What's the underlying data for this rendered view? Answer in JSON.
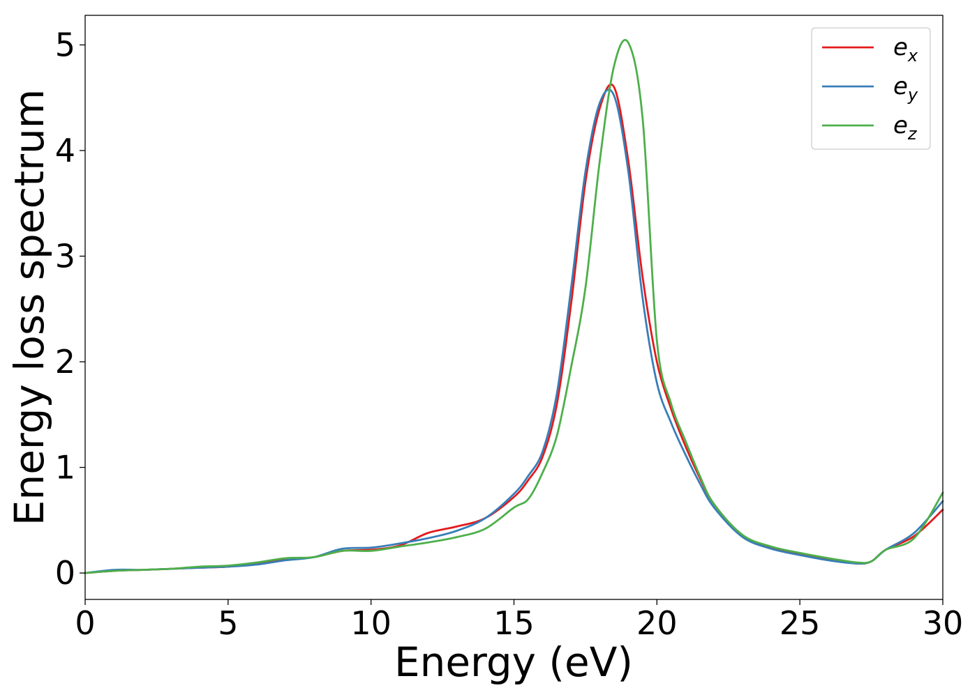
{
  "chart_data": {
    "type": "line",
    "xlabel": "Energy (eV)",
    "ylabel": "Energy loss spectrum",
    "xlim": [
      0,
      30
    ],
    "ylim": [
      -0.25,
      5.28
    ],
    "xticks": [
      0,
      5,
      10,
      15,
      20,
      25,
      30
    ],
    "xtick_labels": [
      "0",
      "5",
      "10",
      "15",
      "20",
      "25",
      "30"
    ],
    "yticks": [
      0,
      1,
      2,
      3,
      4,
      5
    ],
    "ytick_labels": [
      "0",
      "1",
      "2",
      "3",
      "4",
      "5"
    ],
    "grid": false,
    "legend_position": "top-right",
    "x": [
      0,
      1,
      2,
      3,
      4,
      5,
      6,
      7,
      8,
      9,
      10,
      11,
      12,
      13,
      14,
      15,
      15.5,
      16,
      16.5,
      17,
      17.5,
      18,
      18.5,
      19,
      19.5,
      20,
      20.5,
      21,
      21.5,
      22,
      23,
      24,
      25,
      26,
      27,
      27.5,
      28,
      29,
      30
    ],
    "series": [
      {
        "name": "e",
        "subscript": "x",
        "color": "#e41a1c",
        "values": [
          0.0,
          0.02,
          0.03,
          0.04,
          0.05,
          0.06,
          0.09,
          0.13,
          0.15,
          0.21,
          0.22,
          0.26,
          0.38,
          0.44,
          0.52,
          0.72,
          0.88,
          1.1,
          1.6,
          2.55,
          3.7,
          4.4,
          4.6,
          3.9,
          2.8,
          2.0,
          1.55,
          1.2,
          0.9,
          0.65,
          0.35,
          0.24,
          0.18,
          0.13,
          0.09,
          0.11,
          0.22,
          0.35,
          0.6
        ]
      },
      {
        "name": "e",
        "subscript": "y",
        "color": "#377eb8",
        "values": [
          0.0,
          0.03,
          0.03,
          0.04,
          0.05,
          0.06,
          0.08,
          0.12,
          0.15,
          0.23,
          0.24,
          0.28,
          0.33,
          0.4,
          0.52,
          0.75,
          0.92,
          1.15,
          1.7,
          2.7,
          3.8,
          4.45,
          4.52,
          3.8,
          2.6,
          1.8,
          1.42,
          1.12,
          0.85,
          0.62,
          0.34,
          0.23,
          0.17,
          0.12,
          0.09,
          0.11,
          0.22,
          0.38,
          0.68
        ]
      },
      {
        "name": "e",
        "subscript": "z",
        "color": "#4daf4a",
        "values": [
          0.0,
          0.02,
          0.03,
          0.04,
          0.06,
          0.07,
          0.1,
          0.14,
          0.15,
          0.21,
          0.21,
          0.25,
          0.29,
          0.34,
          0.42,
          0.62,
          0.7,
          0.95,
          1.3,
          1.95,
          2.7,
          3.9,
          4.8,
          5.02,
          4.3,
          2.2,
          1.6,
          1.25,
          0.92,
          0.65,
          0.36,
          0.25,
          0.19,
          0.14,
          0.1,
          0.11,
          0.22,
          0.33,
          0.76
        ]
      }
    ]
  }
}
